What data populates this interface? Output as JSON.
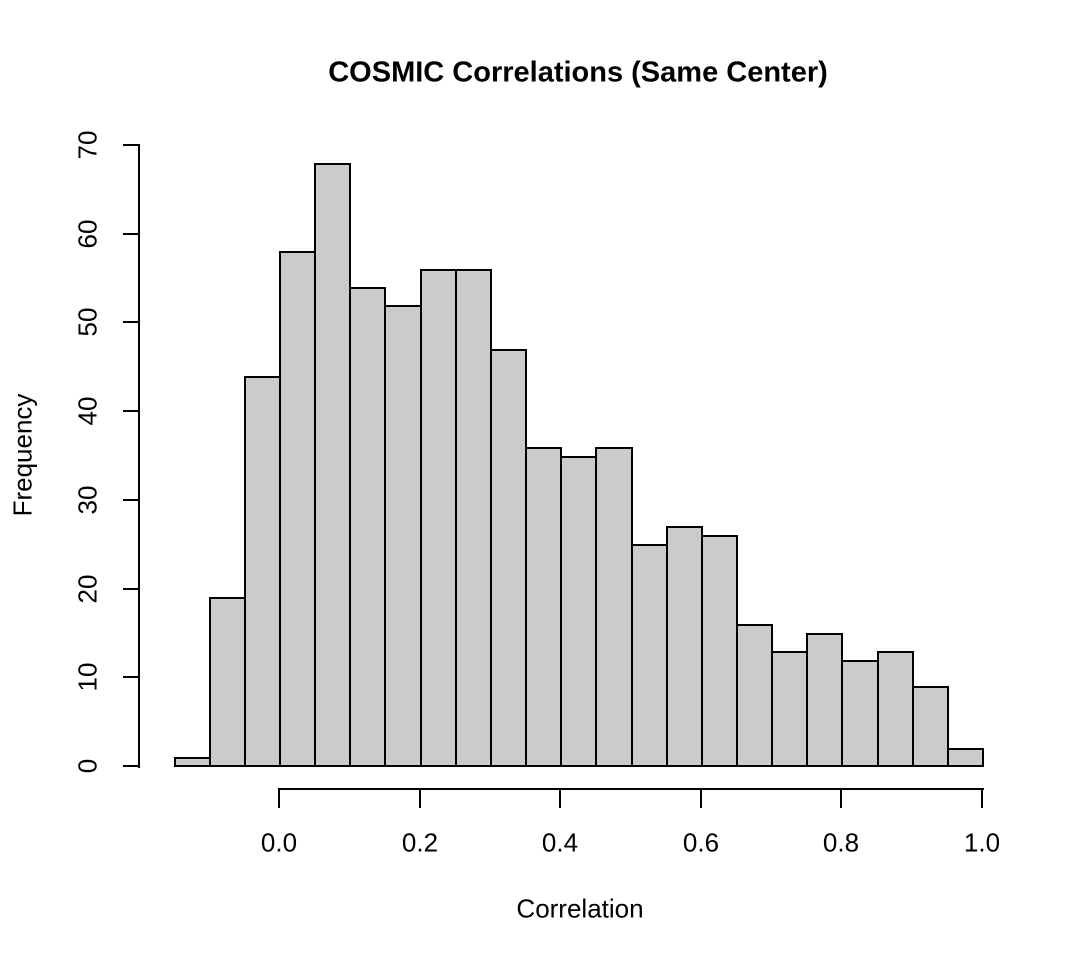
{
  "chart_data": {
    "type": "bar",
    "subtype": "histogram",
    "title": "COSMIC Correlations (Same Center)",
    "xlabel": "Correlation",
    "ylabel": "Frequency",
    "bin_start": -0.15,
    "bin_width": 0.05,
    "counts": [
      1,
      19,
      44,
      58,
      68,
      54,
      52,
      56,
      56,
      47,
      36,
      35,
      36,
      25,
      27,
      26,
      16,
      13,
      15,
      12,
      13,
      9,
      2
    ],
    "x_tick_values": [
      0.0,
      0.2,
      0.4,
      0.6,
      0.8,
      1.0
    ],
    "x_tick_labels": [
      "0.0",
      "0.2",
      "0.4",
      "0.6",
      "0.8",
      "1.0"
    ],
    "y_tick_values": [
      0,
      10,
      20,
      30,
      40,
      50,
      60,
      70
    ],
    "y_tick_labels": [
      "0",
      "10",
      "20",
      "30",
      "40",
      "50",
      "60",
      "70"
    ],
    "xlim": [
      -0.15,
      1.0
    ],
    "ylim": [
      0,
      70
    ],
    "grid": false,
    "legend": "none",
    "bar_fill": "#cbcbcb",
    "bar_border": "#000000",
    "background": "#ffffff"
  }
}
